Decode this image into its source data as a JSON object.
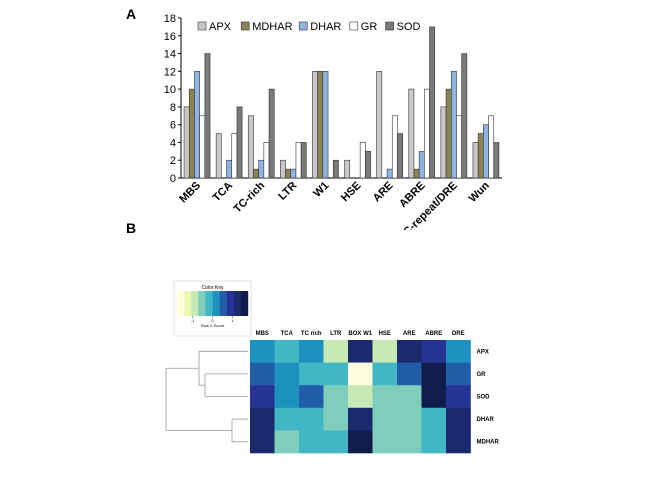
{
  "panel_labels": {
    "a": "A",
    "b": "B"
  },
  "chart_data": [
    {
      "type": "bar",
      "panel": "A",
      "categories": [
        "MBS",
        "TCA",
        "TC-rich",
        "LTR",
        "W1",
        "HSE",
        "ARE",
        "ABRE",
        "C-repeat/DRE",
        "Wun"
      ],
      "series": [
        {
          "name": "APX",
          "color": "#c8c8c8",
          "values": [
            8,
            5,
            7,
            2,
            12,
            2,
            12,
            10,
            8,
            4
          ]
        },
        {
          "name": "MDHAR",
          "color": "#8c8355",
          "values": [
            10,
            0,
            1,
            1,
            12,
            0,
            0,
            1,
            10,
            5
          ]
        },
        {
          "name": "DHAR",
          "color": "#8fb4df",
          "values": [
            12,
            2,
            2,
            1,
            12,
            0,
            1,
            3,
            12,
            6
          ]
        },
        {
          "name": "GR",
          "color": "#ffffff",
          "values": [
            7,
            5,
            4,
            4,
            0,
            4,
            7,
            10,
            7,
            7
          ]
        },
        {
          "name": "SOD",
          "color": "#7a7a7a",
          "values": [
            14,
            8,
            10,
            4,
            2,
            3,
            5,
            17,
            14,
            4
          ]
        }
      ],
      "ylim": [
        0,
        18
      ],
      "yticks": [
        "0",
        "2",
        "4",
        "6",
        "8",
        "10",
        "12",
        "14",
        "16",
        "18"
      ],
      "legend_position": "top"
    },
    {
      "type": "heatmap",
      "panel": "B",
      "columns": [
        "MBS",
        "TCA",
        "TC rich",
        "LTR",
        "BOX W1",
        "HSE",
        "ARE",
        "ABRE",
        "DRE"
      ],
      "rows": [
        "APX",
        "GR",
        "SOD",
        "DHAR",
        "MDHAR"
      ],
      "values": [
        [
          5,
          4,
          5,
          2,
          8,
          2,
          8,
          7,
          5
        ],
        [
          6,
          5,
          4,
          4,
          0,
          4,
          6,
          9,
          6
        ],
        [
          7,
          5,
          6,
          3,
          2,
          3,
          3,
          9,
          7
        ],
        [
          8,
          4,
          4,
          3,
          8,
          3,
          3,
          4,
          8
        ],
        [
          8,
          3,
          4,
          4,
          9,
          3,
          3,
          4,
          8
        ]
      ],
      "palette": [
        "#ffffde",
        "#edf7b1",
        "#c7e9b4",
        "#7fcdbb",
        "#41b6c4",
        "#1d91c0",
        "#225ea8",
        "#253494",
        "#1a2a6c",
        "#101c4a"
      ],
      "color_key_title": "Color Key",
      "color_key_ticks": [
        "-1",
        "0",
        "1"
      ],
      "color_key_xlabel": "Row Z-Score",
      "dendrogram": "rows"
    }
  ]
}
